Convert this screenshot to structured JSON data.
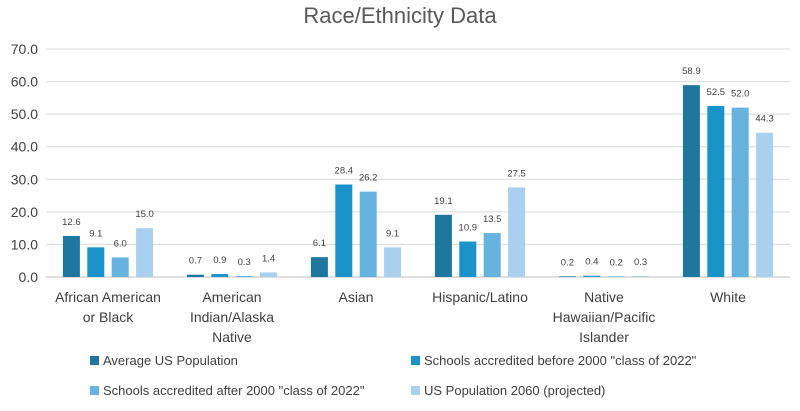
{
  "chart_data": {
    "type": "bar",
    "title": "Race/Ethnicity Data",
    "xlabel": "",
    "ylabel": "",
    "ylim": [
      0,
      70
    ],
    "y_ticks": [
      "0.0",
      "10.0",
      "20.0",
      "30.0",
      "40.0",
      "50.0",
      "60.0",
      "70.0"
    ],
    "grid": true,
    "legend_position": "bottom",
    "categories": [
      [
        "African American",
        "or Black"
      ],
      [
        "American",
        "Indian/Alaska",
        "Native"
      ],
      [
        "Asian"
      ],
      [
        "Hispanic/Latino"
      ],
      [
        "Native",
        "Hawaiian/Pacific",
        "Islander"
      ],
      [
        "White"
      ]
    ],
    "series": [
      {
        "name": "Average US Population",
        "color": "#1F77A0",
        "values": [
          12.6,
          0.7,
          6.1,
          19.1,
          0.2,
          58.9
        ],
        "labels": [
          "12.6",
          "0.7",
          "6.1",
          "19.1",
          "0.2",
          "58.9"
        ]
      },
      {
        "name": "Schools accredited before 2000 \"class of 2022\"",
        "color": "#1A93C8",
        "values": [
          9.1,
          0.9,
          28.4,
          10.9,
          0.4,
          52.5
        ],
        "labels": [
          "9.1",
          "0.9",
          "28.4",
          "10.9",
          "0.4",
          "52.5"
        ]
      },
      {
        "name": "Schools accredited after 2000 \"class of 2022\"",
        "color": "#66B3E0",
        "values": [
          6.0,
          0.3,
          26.2,
          13.5,
          0.2,
          52.0
        ],
        "labels": [
          "6.0",
          "0.3",
          "26.2",
          "13.5",
          "0.2",
          "52.0"
        ]
      },
      {
        "name": "US Population 2060 (projected)",
        "color": "#A9D0EE",
        "values": [
          15.0,
          1.4,
          9.1,
          27.5,
          0.3,
          44.3
        ],
        "labels": [
          "15.0",
          "1.4",
          "9.1",
          "27.5",
          "0.3",
          "44.3"
        ]
      }
    ]
  }
}
